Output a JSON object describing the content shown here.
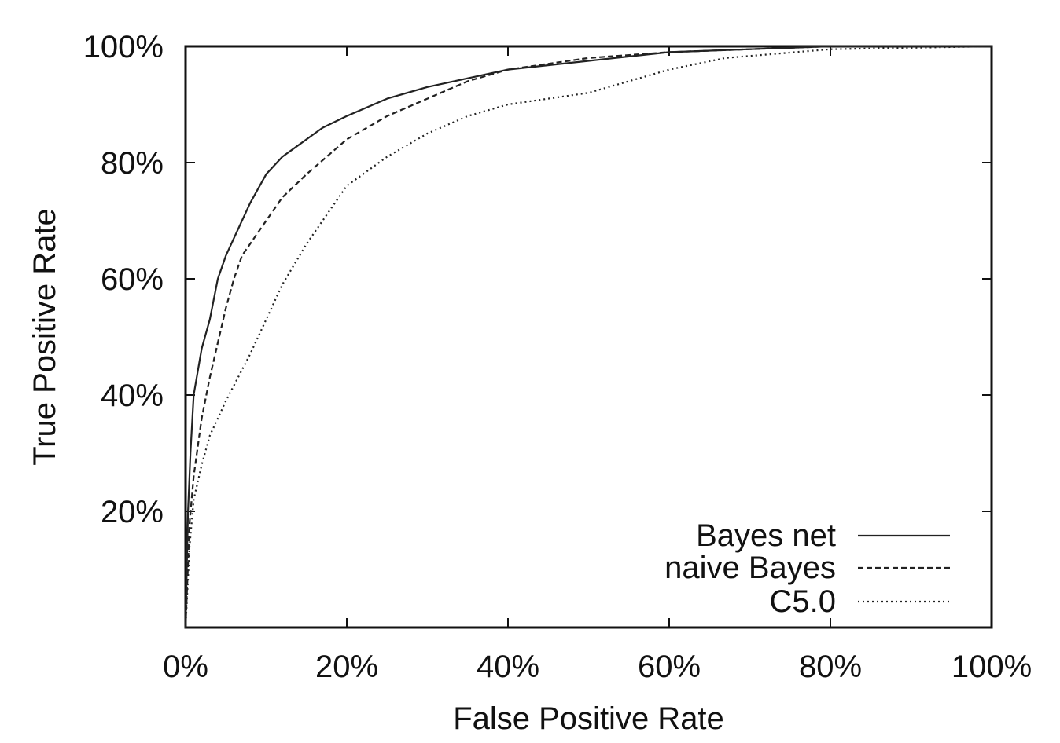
{
  "chart_data": {
    "type": "line",
    "title": "",
    "xlabel": "False Positive Rate",
    "ylabel": "True Positive Rate",
    "xlim": [
      0,
      1
    ],
    "ylim": [
      0,
      1
    ],
    "xticks": [
      "0%",
      "20%",
      "40%",
      "60%",
      "80%",
      "100%"
    ],
    "yticks": [
      "20%",
      "40%",
      "60%",
      "80%",
      "100%"
    ],
    "ytick_values": [
      0.2,
      0.4,
      0.6,
      0.8,
      1.0
    ],
    "xtick_values": [
      0,
      0.2,
      0.4,
      0.6,
      0.8,
      1.0
    ],
    "grid": false,
    "legend_position": "bottom-right",
    "series": [
      {
        "name": "Bayes net",
        "style": "solid",
        "x": [
          0,
          0.003,
          0.006,
          0.01,
          0.02,
          0.03,
          0.04,
          0.05,
          0.06,
          0.08,
          0.1,
          0.12,
          0.14,
          0.16,
          0.17,
          0.2,
          0.25,
          0.3,
          0.35,
          0.4,
          0.5,
          0.6,
          0.7,
          0.8,
          1.0
        ],
        "y": [
          0,
          0.2,
          0.3,
          0.4,
          0.48,
          0.53,
          0.6,
          0.64,
          0.67,
          0.73,
          0.78,
          0.81,
          0.83,
          0.85,
          0.86,
          0.88,
          0.91,
          0.93,
          0.945,
          0.96,
          0.975,
          0.99,
          0.995,
          1.0,
          1.0
        ]
      },
      {
        "name": "naive Bayes",
        "style": "dashed",
        "x": [
          0,
          0.005,
          0.01,
          0.02,
          0.03,
          0.04,
          0.05,
          0.06,
          0.07,
          0.1,
          0.12,
          0.15,
          0.2,
          0.25,
          0.3,
          0.35,
          0.4,
          0.5,
          0.6,
          0.7,
          0.8,
          1.0
        ],
        "y": [
          0,
          0.18,
          0.26,
          0.36,
          0.43,
          0.49,
          0.55,
          0.6,
          0.64,
          0.7,
          0.74,
          0.78,
          0.84,
          0.88,
          0.91,
          0.94,
          0.96,
          0.98,
          0.99,
          0.995,
          1.0,
          1.0
        ]
      },
      {
        "name": "C5.0",
        "style": "dotted",
        "x": [
          0,
          0.005,
          0.01,
          0.02,
          0.03,
          0.05,
          0.08,
          0.1,
          0.12,
          0.15,
          0.18,
          0.2,
          0.25,
          0.3,
          0.35,
          0.4,
          0.5,
          0.6,
          0.67,
          0.8,
          1.0
        ],
        "y": [
          0,
          0.14,
          0.22,
          0.28,
          0.33,
          0.39,
          0.47,
          0.53,
          0.59,
          0.66,
          0.72,
          0.76,
          0.81,
          0.85,
          0.88,
          0.9,
          0.92,
          0.96,
          0.98,
          0.995,
          1.0
        ]
      }
    ]
  }
}
